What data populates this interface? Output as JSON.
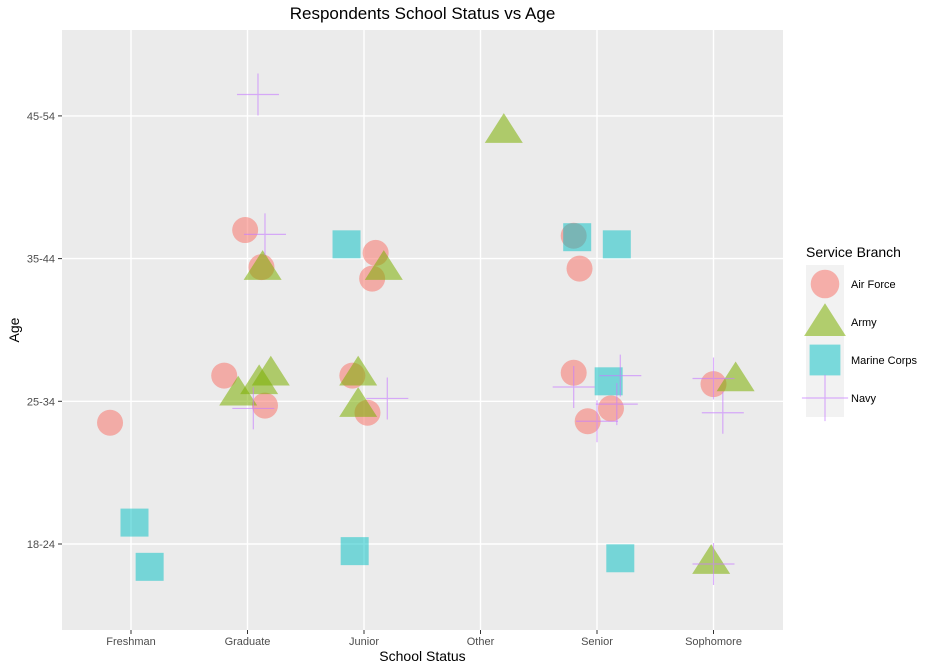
{
  "chart_data": {
    "type": "scatter",
    "title": "Respondents School Status vs Age",
    "xlabel": "School Status",
    "ylabel": "Age",
    "categories": [
      "Freshman",
      "Graduate",
      "Junior",
      "Other",
      "Senior",
      "Sophomore"
    ],
    "y_categories": [
      "18-24",
      "25-34",
      "35-44",
      "45-54"
    ],
    "legend": {
      "title": "Service Branch",
      "placement": "right",
      "entries": [
        "Air Force",
        "Army",
        "Marine Corps",
        "Navy"
      ]
    },
    "series": [
      {
        "name": "Air Force",
        "shape": "circle",
        "color": "#F8766D",
        "points": [
          {
            "x": "Freshman",
            "y": "25-34",
            "jx": -0.18,
            "jy": -0.15
          },
          {
            "x": "Graduate",
            "y": "35-44",
            "jx": -0.02,
            "jy": 0.2
          },
          {
            "x": "Graduate",
            "y": "35-44",
            "jx": 0.12,
            "jy": -0.06
          },
          {
            "x": "Graduate",
            "y": "25-34",
            "jx": -0.2,
            "jy": 0.18
          },
          {
            "x": "Graduate",
            "y": "25-34",
            "jx": 0.15,
            "jy": -0.03
          },
          {
            "x": "Junior",
            "y": "35-44",
            "jx": 0.1,
            "jy": 0.04
          },
          {
            "x": "Junior",
            "y": "35-44",
            "jx": 0.07,
            "jy": -0.14
          },
          {
            "x": "Junior",
            "y": "25-34",
            "jx": -0.1,
            "jy": 0.18
          },
          {
            "x": "Junior",
            "y": "25-34",
            "jx": 0.03,
            "jy": -0.08
          },
          {
            "x": "Senior",
            "y": "35-44",
            "jx": -0.2,
            "jy": 0.16
          },
          {
            "x": "Senior",
            "y": "35-44",
            "jx": -0.15,
            "jy": -0.07
          },
          {
            "x": "Senior",
            "y": "25-34",
            "jx": -0.2,
            "jy": 0.2
          },
          {
            "x": "Senior",
            "y": "25-34",
            "jx": 0.12,
            "jy": -0.05
          },
          {
            "x": "Senior",
            "y": "25-34",
            "jx": -0.08,
            "jy": -0.14
          },
          {
            "x": "Sophomore",
            "y": "25-34",
            "jx": 0.0,
            "jy": 0.12
          }
        ]
      },
      {
        "name": "Army",
        "shape": "triangle",
        "color": "#7CAE00",
        "points": [
          {
            "x": "Graduate",
            "y": "35-44",
            "jx": 0.13,
            "jy": -0.06
          },
          {
            "x": "Graduate",
            "y": "25-34",
            "jx": 0.2,
            "jy": 0.2
          },
          {
            "x": "Graduate",
            "y": "25-34",
            "jx": 0.1,
            "jy": 0.14
          },
          {
            "x": "Graduate",
            "y": "25-34",
            "jx": -0.08,
            "jy": 0.06
          },
          {
            "x": "Junior",
            "y": "35-44",
            "jx": 0.17,
            "jy": -0.06
          },
          {
            "x": "Junior",
            "y": "25-34",
            "jx": -0.05,
            "jy": 0.2
          },
          {
            "x": "Junior",
            "y": "25-34",
            "jx": -0.05,
            "jy": -0.02
          },
          {
            "x": "Other",
            "y": "45-54",
            "jx": 0.2,
            "jy": -0.1
          },
          {
            "x": "Sophomore",
            "y": "25-34",
            "jx": 0.19,
            "jy": 0.16
          },
          {
            "x": "Sophomore",
            "y": "18-24",
            "jx": -0.02,
            "jy": -0.12
          }
        ]
      },
      {
        "name": "Marine Corps",
        "shape": "square",
        "color": "#00BFC4",
        "points": [
          {
            "x": "Freshman",
            "y": "18-24",
            "jx": 0.03,
            "jy": 0.15
          },
          {
            "x": "Freshman",
            "y": "18-24",
            "jx": 0.16,
            "jy": -0.16
          },
          {
            "x": "Junior",
            "y": "35-44",
            "jx": -0.15,
            "jy": 0.1
          },
          {
            "x": "Junior",
            "y": "18-24",
            "jx": -0.08,
            "jy": -0.05
          },
          {
            "x": "Senior",
            "y": "35-44",
            "jx": -0.17,
            "jy": 0.15
          },
          {
            "x": "Senior",
            "y": "35-44",
            "jx": 0.17,
            "jy": 0.1
          },
          {
            "x": "Senior",
            "y": "25-34",
            "jx": 0.1,
            "jy": 0.14
          },
          {
            "x": "Senior",
            "y": "18-24",
            "jx": 0.2,
            "jy": -0.1
          }
        ]
      },
      {
        "name": "Navy",
        "shape": "plus",
        "color": "#C77CFF",
        "points": [
          {
            "x": "Graduate",
            "y": "45-54",
            "jx": 0.09,
            "jy": 0.15
          },
          {
            "x": "Graduate",
            "y": "35-44",
            "jx": 0.15,
            "jy": 0.17
          },
          {
            "x": "Graduate",
            "y": "25-34",
            "jx": 0.05,
            "jy": -0.05
          },
          {
            "x": "Junior",
            "y": "25-34",
            "jx": 0.2,
            "jy": 0.02
          },
          {
            "x": "Senior",
            "y": "25-34",
            "jx": -0.2,
            "jy": 0.1
          },
          {
            "x": "Senior",
            "y": "25-34",
            "jx": 0.2,
            "jy": 0.18
          },
          {
            "x": "Senior",
            "y": "25-34",
            "jx": 0.17,
            "jy": -0.02
          },
          {
            "x": "Senior",
            "y": "25-34",
            "jx": 0.0,
            "jy": -0.14
          },
          {
            "x": "Sophomore",
            "y": "25-34",
            "jx": 0.0,
            "jy": 0.16
          },
          {
            "x": "Sophomore",
            "y": "25-34",
            "jx": 0.08,
            "jy": -0.08
          },
          {
            "x": "Sophomore",
            "y": "18-24",
            "jx": 0.0,
            "jy": -0.14
          }
        ]
      }
    ]
  }
}
